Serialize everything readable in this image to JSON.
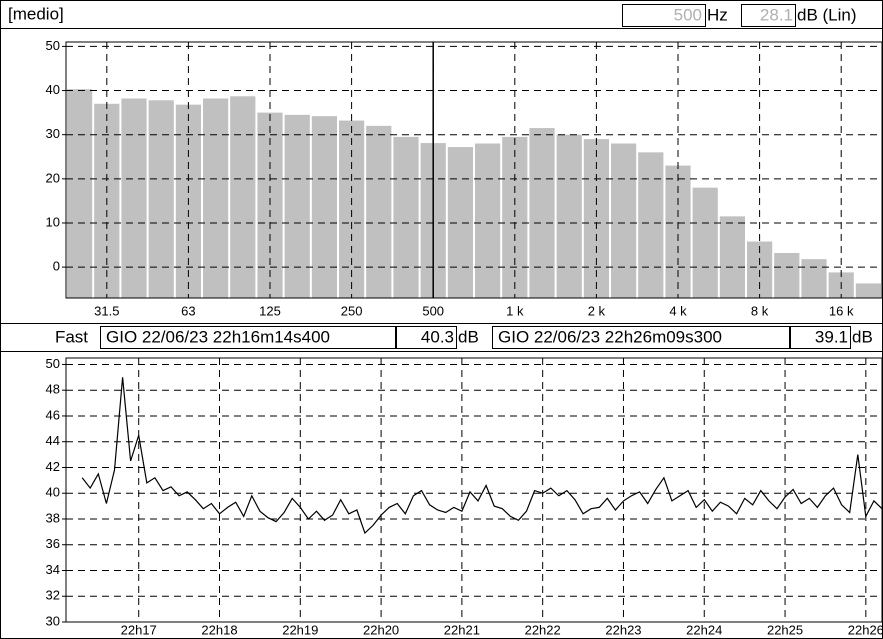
{
  "header": {
    "label": "[medio]",
    "frequency": "500",
    "frequency_unit": "Hz",
    "level": 28.1,
    "level_unit": "dB (Lin)"
  },
  "status": {
    "mode": "Fast",
    "start": "GIO 22/06/23 22h16m14s400",
    "start_level": 40.3,
    "end": "GIO 22/06/23 22h26m09s300",
    "end_level": 39.1,
    "unit": "dB"
  },
  "chart_data": [
    {
      "type": "bar",
      "color": "#c0c0c0",
      "grid": true,
      "categories": [
        null,
        "31.5",
        null,
        null,
        "63",
        null,
        null,
        "125",
        null,
        null,
        "250",
        null,
        null,
        "500",
        null,
        null,
        "1 k",
        null,
        null,
        "2 k",
        null,
        null,
        "4 k",
        null,
        null,
        "8 k",
        null,
        null,
        "16 k",
        null
      ],
      "values": [
        40.3,
        37,
        38.2,
        37.8,
        36.8,
        38.2,
        38.7,
        35,
        34.5,
        34.2,
        33.2,
        32,
        29.5,
        28.1,
        27.2,
        28,
        29.5,
        31.5,
        30,
        29,
        28,
        26,
        23,
        18,
        11.5,
        5.8,
        3.2,
        1.8,
        -1.2,
        -3.7
      ],
      "ylim": [
        -7,
        51
      ],
      "yticks": [
        0,
        10,
        20,
        30,
        40,
        50
      ]
    },
    {
      "type": "line",
      "color": "#000000",
      "grid": true,
      "x": [
        16.3,
        16.4,
        16.5,
        16.6,
        16.7,
        16.8,
        16.9,
        17.0,
        17.1,
        17.2,
        17.3,
        17.4,
        17.5,
        17.6,
        17.7,
        17.8,
        17.9,
        18.0,
        18.1,
        18.2,
        18.3,
        18.4,
        18.5,
        18.6,
        18.7,
        18.8,
        18.9,
        19.0,
        19.1,
        19.2,
        19.3,
        19.4,
        19.5,
        19.6,
        19.7,
        19.8,
        19.9,
        20.0,
        20.1,
        20.2,
        20.3,
        20.4,
        20.5,
        20.6,
        20.7,
        20.8,
        20.9,
        21.0,
        21.1,
        21.2,
        21.3,
        21.4,
        21.5,
        21.6,
        21.7,
        21.8,
        21.9,
        22.0,
        22.1,
        22.2,
        22.3,
        22.4,
        22.5,
        22.6,
        22.7,
        22.8,
        22.9,
        23.0,
        23.1,
        23.2,
        23.3,
        23.4,
        23.5,
        23.6,
        23.7,
        23.8,
        23.9,
        24.0,
        24.1,
        24.2,
        24.3,
        24.4,
        24.5,
        24.6,
        24.7,
        24.8,
        24.9,
        25.0,
        25.1,
        25.2,
        25.3,
        25.4,
        25.5,
        25.6,
        25.7,
        25.8,
        25.9,
        26.0,
        26.1,
        26.2
      ],
      "values": [
        41.2,
        40.4,
        41.5,
        39.2,
        41.8,
        49.0,
        42.5,
        44.5,
        40.8,
        41.2,
        40.2,
        40.5,
        39.8,
        40.1,
        39.5,
        38.8,
        39.2,
        38.4,
        38.9,
        39.3,
        38.2,
        39.8,
        38.6,
        38.1,
        37.8,
        38.5,
        39.6,
        38.9,
        38.0,
        38.6,
        37.9,
        38.3,
        39.5,
        38.4,
        38.7,
        36.9,
        37.5,
        38.3,
        38.9,
        39.2,
        38.4,
        39.8,
        40.2,
        39.1,
        38.7,
        38.5,
        38.9,
        38.6,
        40.1,
        39.4,
        40.6,
        39.0,
        38.8,
        38.2,
        37.9,
        38.6,
        40.2,
        40.0,
        40.4,
        39.8,
        40.2,
        39.5,
        38.4,
        38.8,
        38.9,
        39.6,
        38.7,
        39.4,
        39.8,
        40.1,
        39.2,
        40.3,
        41.2,
        39.4,
        39.8,
        40.2,
        38.9,
        39.5,
        38.6,
        39.3,
        39.0,
        38.4,
        39.6,
        39.1,
        40.2,
        39.4,
        38.8,
        39.7,
        40.3,
        39.2,
        39.6,
        38.9,
        39.8,
        40.4,
        39.1,
        38.5,
        43.0,
        38.2,
        39.4,
        38.8
      ],
      "xlim": [
        16.1,
        26.2
      ],
      "xticks": [
        {
          "value": 17,
          "label": "22h17"
        },
        {
          "value": 18,
          "label": "22h18"
        },
        {
          "value": 19,
          "label": "22h19"
        },
        {
          "value": 20,
          "label": "22h20"
        },
        {
          "value": 21,
          "label": "22h21"
        },
        {
          "value": 22,
          "label": "22h22"
        },
        {
          "value": 23,
          "label": "22h23"
        },
        {
          "value": 24,
          "label": "22h24"
        },
        {
          "value": 25,
          "label": "22h25"
        },
        {
          "value": 26,
          "label": "22h26"
        }
      ],
      "ylim": [
        30,
        50.5
      ],
      "yticks": [
        30,
        32,
        34,
        36,
        38,
        40,
        42,
        44,
        46,
        48,
        50
      ]
    }
  ]
}
